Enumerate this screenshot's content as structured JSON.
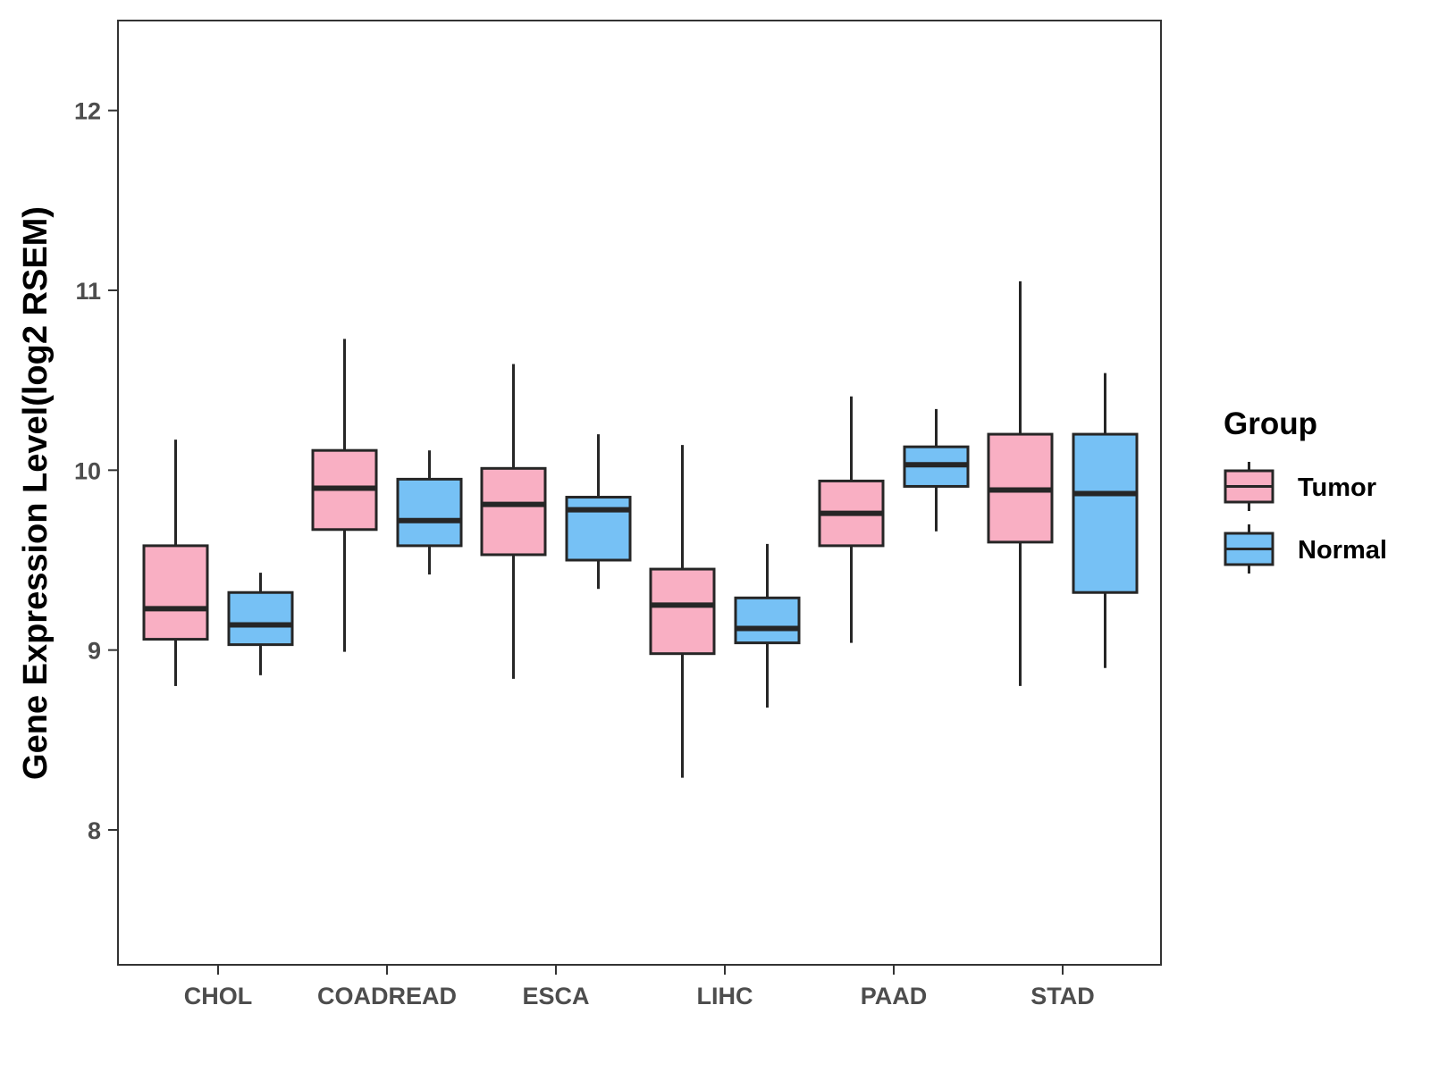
{
  "chart_data": {
    "type": "boxplot",
    "title": "",
    "xlabel": "",
    "ylabel": "Gene Expression Level(log2 RSEM)",
    "ylim": [
      7.25,
      12.5
    ],
    "yticks": [
      8,
      9,
      10,
      11,
      12
    ],
    "grid": false,
    "legend": {
      "title": "Group",
      "position": "right",
      "entries": [
        "Tumor",
        "Normal"
      ]
    },
    "colors": {
      "Tumor": "#F9AFC3",
      "Normal": "#76C1F5",
      "outline": "#262626"
    },
    "categories": [
      "CHOL",
      "COADREAD",
      "ESCA",
      "LIHC",
      "PAAD",
      "STAD"
    ],
    "series": [
      {
        "name": "Tumor",
        "boxes": [
          {
            "category": "CHOL",
            "whisker_low": 8.8,
            "q1": 9.06,
            "median": 9.23,
            "q3": 9.58,
            "whisker_high": 10.17
          },
          {
            "category": "COADREAD",
            "whisker_low": 8.99,
            "q1": 9.67,
            "median": 9.9,
            "q3": 10.11,
            "whisker_high": 10.73
          },
          {
            "category": "ESCA",
            "whisker_low": 8.84,
            "q1": 9.53,
            "median": 9.81,
            "q3": 10.01,
            "whisker_high": 10.59
          },
          {
            "category": "LIHC",
            "whisker_low": 8.29,
            "q1": 8.98,
            "median": 9.25,
            "q3": 9.45,
            "whisker_high": 10.14
          },
          {
            "category": "PAAD",
            "whisker_low": 9.04,
            "q1": 9.58,
            "median": 9.76,
            "q3": 9.94,
            "whisker_high": 10.41
          },
          {
            "category": "STAD",
            "whisker_low": 8.8,
            "q1": 9.6,
            "median": 9.89,
            "q3": 10.2,
            "whisker_high": 11.05
          }
        ]
      },
      {
        "name": "Normal",
        "boxes": [
          {
            "category": "CHOL",
            "whisker_low": 8.86,
            "q1": 9.03,
            "median": 9.14,
            "q3": 9.32,
            "whisker_high": 9.43
          },
          {
            "category": "COADREAD",
            "whisker_low": 9.42,
            "q1": 9.58,
            "median": 9.72,
            "q3": 9.95,
            "whisker_high": 10.11
          },
          {
            "category": "ESCA",
            "whisker_low": 9.34,
            "q1": 9.5,
            "median": 9.78,
            "q3": 9.85,
            "whisker_high": 10.2
          },
          {
            "category": "LIHC",
            "whisker_low": 8.68,
            "q1": 9.04,
            "median": 9.12,
            "q3": 9.29,
            "whisker_high": 9.59
          },
          {
            "category": "PAAD",
            "whisker_low": 9.66,
            "q1": 9.91,
            "median": 10.03,
            "q3": 10.13,
            "whisker_high": 10.34
          },
          {
            "category": "STAD",
            "whisker_low": 8.9,
            "q1": 9.32,
            "median": 9.87,
            "q3": 10.2,
            "whisker_high": 10.54
          }
        ]
      }
    ]
  }
}
